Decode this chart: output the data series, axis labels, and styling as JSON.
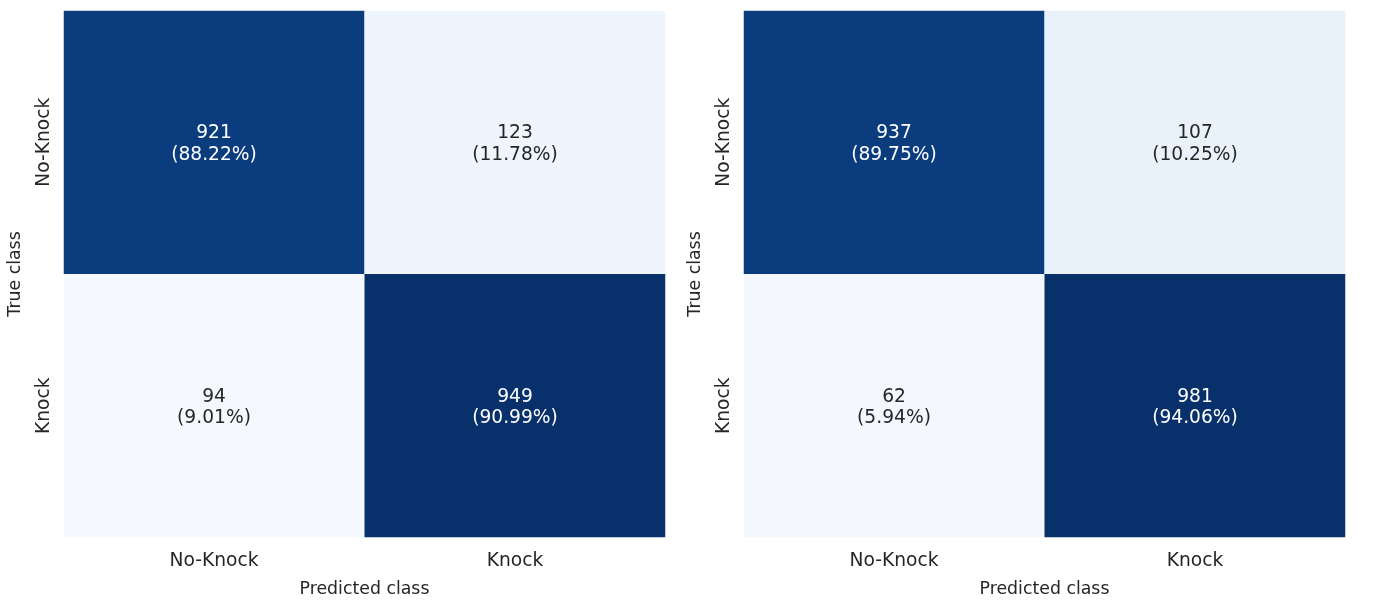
{
  "chart_data": [
    {
      "type": "heatmap",
      "xlabel": "Predicted class",
      "ylabel": "True class",
      "categories": [
        "No-Knock",
        "Knock"
      ],
      "y_categories": [
        "No-Knock",
        "Knock"
      ],
      "cells": [
        [
          921,
          123
        ],
        [
          94,
          949
        ]
      ],
      "data_labels": true,
      "colors": [
        [
          "#0b3d7e",
          "#eef5fd"
        ],
        [
          "#f5f9fe",
          "#08306b"
        ]
      ],
      "annotations": [
        "(88.22%)",
        "(11.78%)",
        "(9.01%)",
        "(90.99%)"
      ]
    },
    {
      "type": "heatmap",
      "xlabel": "Predicted class",
      "ylabel": "True class",
      "categories": [
        "No-Knock",
        "Knock"
      ],
      "y_categories": [
        "No-Knock",
        "Knock"
      ],
      "cells": [
        [
          937,
          107
        ],
        [
          62,
          981
        ]
      ],
      "data_labels": true,
      "colors": [
        [
          "#0b3d7e",
          "#e9f2fb"
        ],
        [
          "#f4f8fe",
          "#08306b"
        ]
      ],
      "annotations": [
        "(89.75%)",
        "(10.25%)",
        "(5.94%)",
        "(94.06%)"
      ]
    }
  ]
}
